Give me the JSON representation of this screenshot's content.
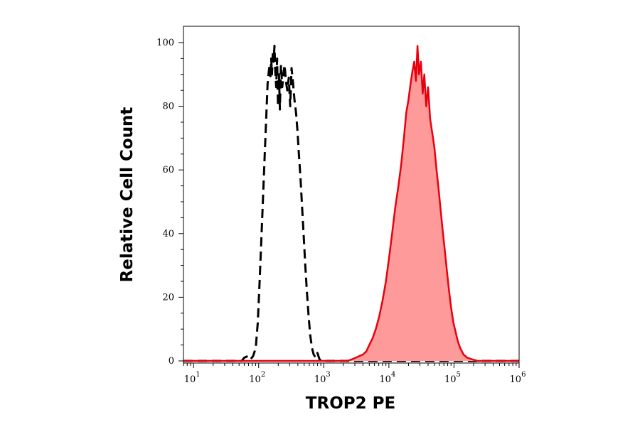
{
  "chart_data": {
    "type": "area",
    "xlabel": "TROP2 PE",
    "ylabel": "Relative Cell Count",
    "x_scale": "log",
    "xlim": [
      7,
      1000000
    ],
    "ylim": [
      0,
      100
    ],
    "x_ticks": [
      {
        "base": "10",
        "exp": "1",
        "value": 10
      },
      {
        "base": "10",
        "exp": "2",
        "value": 100
      },
      {
        "base": "10",
        "exp": "3",
        "value": 1000
      },
      {
        "base": "10",
        "exp": "4",
        "value": 10000
      },
      {
        "base": "10",
        "exp": "5",
        "value": 100000
      },
      {
        "base": "10",
        "exp": "6",
        "value": 1000000
      }
    ],
    "y_ticks": [
      "0",
      "20",
      "40",
      "60",
      "80",
      "100"
    ],
    "grid": false,
    "legend": "none",
    "series": [
      {
        "style": "dashed",
        "color": "#000000",
        "fill": "none",
        "points": [
          [
            7,
            0
          ],
          [
            55,
            0
          ],
          [
            60,
            1
          ],
          [
            68,
            1.5
          ],
          [
            75,
            0.5
          ],
          [
            82,
            1.5
          ],
          [
            90,
            4
          ],
          [
            97,
            12
          ],
          [
            103,
            24
          ],
          [
            110,
            38
          ],
          [
            117,
            52
          ],
          [
            124,
            65
          ],
          [
            131,
            77
          ],
          [
            137,
            87
          ],
          [
            143,
            91
          ],
          [
            148,
            93
          ],
          [
            152,
            89
          ],
          [
            156,
            95
          ],
          [
            160,
            90
          ],
          [
            165,
            97
          ],
          [
            170,
            94
          ],
          [
            175,
            99
          ],
          [
            180,
            91
          ],
          [
            186,
            86
          ],
          [
            192,
            95
          ],
          [
            198,
            80
          ],
          [
            205,
            90
          ],
          [
            212,
            79
          ],
          [
            220,
            93
          ],
          [
            230,
            86
          ],
          [
            240,
            90
          ],
          [
            250,
            93
          ],
          [
            262,
            88
          ],
          [
            275,
            85
          ],
          [
            290,
            89
          ],
          [
            305,
            80
          ],
          [
            320,
            92
          ],
          [
            338,
            87
          ],
          [
            355,
            82
          ],
          [
            375,
            78
          ],
          [
            395,
            72
          ],
          [
            415,
            65
          ],
          [
            440,
            57
          ],
          [
            465,
            48
          ],
          [
            490,
            40
          ],
          [
            520,
            30
          ],
          [
            550,
            22
          ],
          [
            585,
            14
          ],
          [
            620,
            8
          ],
          [
            660,
            4
          ],
          [
            700,
            2
          ],
          [
            750,
            1
          ],
          [
            800,
            2.5
          ],
          [
            860,
            0.5
          ],
          [
            950,
            0
          ],
          [
            1000000,
            0
          ]
        ]
      },
      {
        "style": "solid",
        "color": "#e8000d",
        "fill": "#ff9a9a",
        "points": [
          [
            7,
            0
          ],
          [
            2300,
            0
          ],
          [
            2700,
            0.5
          ],
          [
            3100,
            1
          ],
          [
            3500,
            1.5
          ],
          [
            4000,
            2
          ],
          [
            4500,
            3
          ],
          [
            5000,
            5
          ],
          [
            5600,
            7
          ],
          [
            6300,
            10
          ],
          [
            7100,
            14
          ],
          [
            8000,
            19
          ],
          [
            9000,
            25
          ],
          [
            10000,
            32
          ],
          [
            11200,
            40
          ],
          [
            12500,
            48
          ],
          [
            14000,
            55
          ],
          [
            15500,
            62
          ],
          [
            17000,
            70
          ],
          [
            18500,
            78
          ],
          [
            20000,
            82
          ],
          [
            21500,
            87
          ],
          [
            23000,
            91
          ],
          [
            24500,
            94
          ],
          [
            26000,
            88
          ],
          [
            27500,
            99
          ],
          [
            29000,
            90
          ],
          [
            31000,
            94
          ],
          [
            33000,
            84
          ],
          [
            35000,
            90
          ],
          [
            37500,
            80
          ],
          [
            40000,
            86
          ],
          [
            43000,
            76
          ],
          [
            46000,
            72
          ],
          [
            50000,
            67
          ],
          [
            54000,
            60
          ],
          [
            58000,
            54
          ],
          [
            62000,
            48
          ],
          [
            67000,
            41
          ],
          [
            72000,
            35
          ],
          [
            78000,
            28
          ],
          [
            84000,
            22
          ],
          [
            90000,
            17
          ],
          [
            98000,
            12
          ],
          [
            106000,
            9
          ],
          [
            115000,
            6
          ],
          [
            125000,
            4
          ],
          [
            140000,
            2
          ],
          [
            160000,
            1
          ],
          [
            190000,
            0.5
          ],
          [
            230000,
            0
          ],
          [
            1000000,
            0
          ]
        ]
      }
    ]
  }
}
